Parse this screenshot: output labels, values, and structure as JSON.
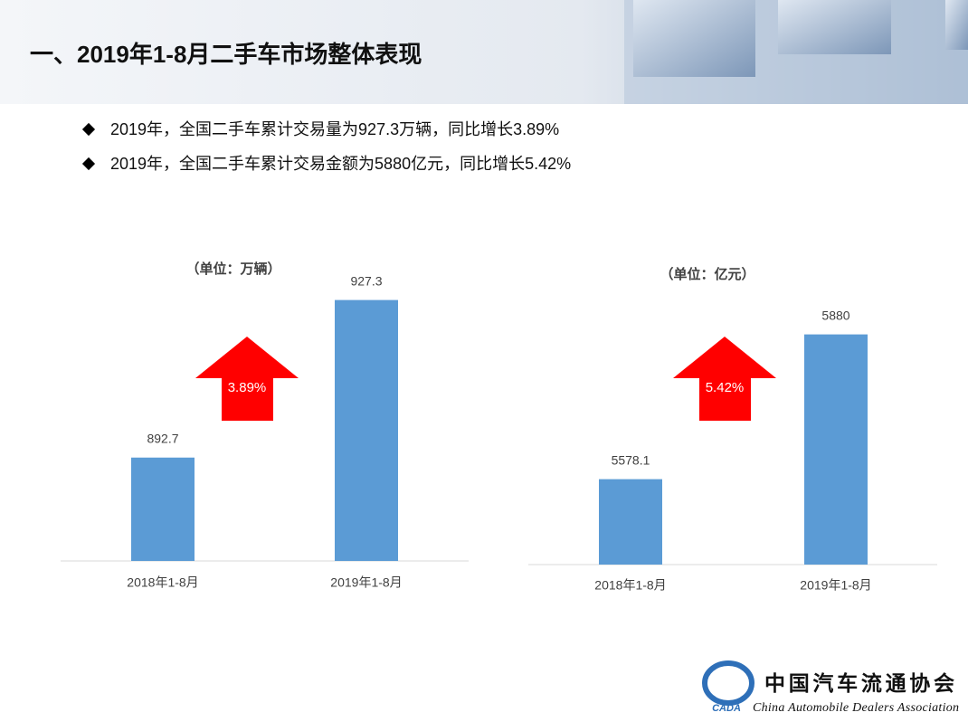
{
  "header": {
    "title": "一、2019年1-8月二手车市场整体表现"
  },
  "bullets": [
    "2019年，全国二手车累计交易量为927.3万辆，同比增长3.89%",
    "2019年，全国二手车累计交易金额为5880亿元，同比增长5.42%"
  ],
  "chart_data": [
    {
      "type": "bar",
      "subtitle": "（单位：万辆）",
      "categories": [
        "2018年1-8月",
        "2019年1-8月"
      ],
      "values": [
        892.7,
        927.3
      ],
      "color": "#5b9bd5",
      "ylim": [
        870,
        930
      ],
      "annotation": "3.89%"
    },
    {
      "type": "bar",
      "subtitle": "（单位：亿元）",
      "categories": [
        "2018年1-8月",
        "2019年1-8月"
      ],
      "values": [
        5578.1,
        5880
      ],
      "color": "#5b9bd5",
      "ylim": [
        5400,
        5900
      ],
      "annotation": "5.42%"
    }
  ],
  "logo": {
    "mark": "CADA",
    "name": "中国汽车流通协会",
    "name_en": "China Automobile Dealers Association"
  }
}
